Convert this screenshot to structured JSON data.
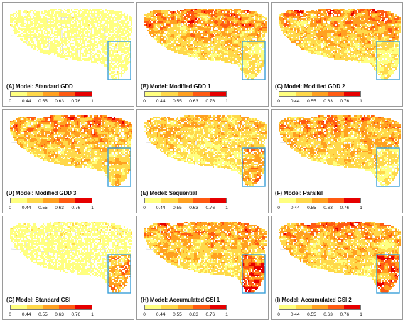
{
  "legend": {
    "ticks": [
      "0",
      "0.44",
      "0.55",
      "0.63",
      "0.76",
      "1"
    ],
    "colors": [
      "#ffff80",
      "#ffd84a",
      "#ffa020",
      "#ff5a12",
      "#e60000"
    ]
  },
  "colors": {
    "land": "#ffffff",
    "borders": "#c8c8c8",
    "highlight_box": "#3aa0d8"
  },
  "panels": [
    {
      "label": "(A) Model: Standard GDD",
      "intensity": 0.15,
      "box_coverage": 0.15,
      "density": 0.7
    },
    {
      "label": "(B) Model: Modified GDD 1",
      "intensity": 0.75,
      "box_coverage": 0.25,
      "density": 0.88
    },
    {
      "label": "(C) Model: Modified GDD 2",
      "intensity": 0.75,
      "box_coverage": 0.25,
      "density": 0.88
    },
    {
      "label": "(D) Model: Modified GDD 3",
      "intensity": 0.78,
      "box_coverage": 0.4,
      "density": 0.9
    },
    {
      "label": "(E) Model: Sequential",
      "intensity": 0.55,
      "box_coverage": 0.55,
      "density": 0.85
    },
    {
      "label": "(F) Model: Parallel",
      "intensity": 0.72,
      "box_coverage": 0.25,
      "density": 0.88
    },
    {
      "label": "(G) Model: Standard GSI",
      "intensity": 0.18,
      "box_coverage": 0.6,
      "density": 0.72
    },
    {
      "label": "(H) Model: Accumulated GSI 1",
      "intensity": 0.72,
      "box_coverage": 0.85,
      "density": 0.88
    },
    {
      "label": "(I) Model: Accumulated GSI 2",
      "intensity": 0.72,
      "box_coverage": 0.8,
      "density": 0.88
    }
  ]
}
